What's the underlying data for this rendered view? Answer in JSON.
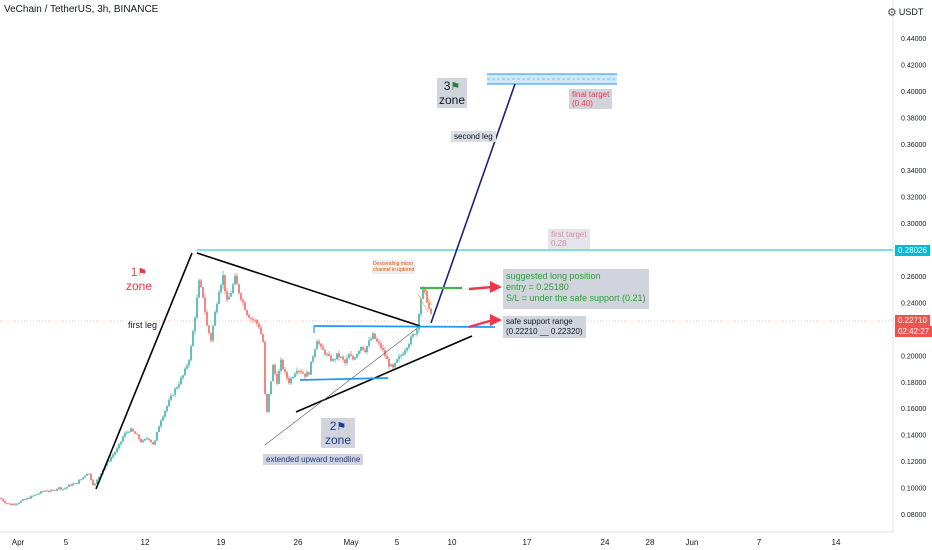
{
  "header": {
    "symbol_title": "VeChain / TetherUS, 3h, BINANCE",
    "currency_label": "USDT"
  },
  "colors": {
    "bull": "#26a69a",
    "bear": "#ef5350",
    "blue_line": "#2196f3",
    "navy_line": "#1a237e",
    "first_target_line": "#00bcd4",
    "green_entry": "#4caf50",
    "red_arrow": "#f23645",
    "price_tag_red": "#ef5350"
  },
  "price_tags": {
    "first_target_value": "0.28026",
    "current_price": "0.22710",
    "countdown": "02:42:27"
  },
  "annotations": {
    "first_leg": "first leg",
    "second_leg": "second leg",
    "zone1_num": "1",
    "zone2_num": "2",
    "zone3_num": "3",
    "zone_word": "zone",
    "extended_trendline": "extended upward trendline",
    "final_target_line1": "final target",
    "final_target_line2": "(0.40)",
    "first_target_line1": "first target",
    "first_target_line2": "0.28",
    "suggested_line1": "suggested long position",
    "suggested_line2": "entry = 0.25180",
    "suggested_line3": "S/L = under the safe support (0.21)",
    "safe_support_line1": "safe support range",
    "safe_support_line2": "(0.22210 __ 0.22320)",
    "micro_channel_line1": "Descending micro",
    "micro_channel_line2": "channel in uptrend"
  },
  "chart_data": {
    "type": "candlestick",
    "x_ticks": [
      "Apr",
      "5",
      "12",
      "19",
      "26",
      "May",
      "5",
      "10",
      "17",
      "24",
      "28",
      "Jun",
      "7",
      "14"
    ],
    "y_ticks": [
      "0.08000",
      "0.10000",
      "0.12000",
      "0.14000",
      "0.16000",
      "0.18000",
      "0.20000",
      "0.22000",
      "0.24000",
      "0.26000",
      "0.28000",
      "0.30000",
      "0.32000",
      "0.34000",
      "0.36000",
      "0.38000",
      "0.40000",
      "0.42000",
      "0.44000"
    ],
    "ylim": [
      0.074,
      0.455
    ],
    "price_path": [
      [
        0,
        0.092
      ],
      [
        5,
        0.089
      ],
      [
        10,
        0.087
      ],
      [
        16,
        0.088
      ],
      [
        22,
        0.09
      ],
      [
        28,
        0.092
      ],
      [
        34,
        0.094
      ],
      [
        40,
        0.096
      ],
      [
        46,
        0.098
      ],
      [
        52,
        0.097
      ],
      [
        58,
        0.1
      ],
      [
        64,
        0.099
      ],
      [
        70,
        0.102
      ],
      [
        76,
        0.103
      ],
      [
        82,
        0.107
      ],
      [
        88,
        0.112
      ],
      [
        94,
        0.101
      ],
      [
        100,
        0.11
      ],
      [
        106,
        0.118
      ],
      [
        112,
        0.124
      ],
      [
        118,
        0.13
      ],
      [
        124,
        0.14
      ],
      [
        130,
        0.144
      ],
      [
        136,
        0.14
      ],
      [
        142,
        0.134
      ],
      [
        148,
        0.138
      ],
      [
        154,
        0.132
      ],
      [
        160,
        0.15
      ],
      [
        166,
        0.16
      ],
      [
        172,
        0.17
      ],
      [
        178,
        0.178
      ],
      [
        184,
        0.186
      ],
      [
        190,
        0.2
      ],
      [
        195,
        0.23
      ],
      [
        199,
        0.255
      ],
      [
        203,
        0.245
      ],
      [
        207,
        0.222
      ],
      [
        211,
        0.212
      ],
      [
        215,
        0.232
      ],
      [
        219,
        0.25
      ],
      [
        223,
        0.26
      ],
      [
        227,
        0.24
      ],
      [
        231,
        0.248
      ],
      [
        235,
        0.258
      ],
      [
        239,
        0.248
      ],
      [
        243,
        0.24
      ],
      [
        247,
        0.232
      ],
      [
        251,
        0.228
      ],
      [
        255,
        0.226
      ],
      [
        259,
        0.222
      ],
      [
        263,
        0.21
      ],
      [
        266,
        0.15
      ],
      [
        269,
        0.17
      ],
      [
        273,
        0.192
      ],
      [
        277,
        0.18
      ],
      [
        281,
        0.195
      ],
      [
        285,
        0.186
      ],
      [
        289,
        0.18
      ],
      [
        293,
        0.185
      ],
      [
        297,
        0.19
      ],
      [
        301,
        0.188
      ],
      [
        305,
        0.185
      ],
      [
        309,
        0.187
      ],
      [
        313,
        0.2
      ],
      [
        317,
        0.212
      ],
      [
        321,
        0.205
      ],
      [
        325,
        0.202
      ],
      [
        329,
        0.198
      ],
      [
        333,
        0.196
      ],
      [
        337,
        0.2
      ],
      [
        341,
        0.198
      ],
      [
        345,
        0.194
      ],
      [
        349,
        0.2
      ],
      [
        353,
        0.197
      ],
      [
        357,
        0.202
      ],
      [
        361,
        0.207
      ],
      [
        365,
        0.204
      ],
      [
        369,
        0.21
      ],
      [
        373,
        0.215
      ],
      [
        377,
        0.21
      ],
      [
        381,
        0.206
      ],
      [
        385,
        0.2
      ],
      [
        389,
        0.193
      ],
      [
        393,
        0.19
      ],
      [
        397,
        0.196
      ],
      [
        401,
        0.2
      ],
      [
        405,
        0.205
      ],
      [
        409,
        0.21
      ],
      [
        413,
        0.215
      ],
      [
        417,
        0.22
      ],
      [
        420,
        0.24
      ],
      [
        423,
        0.25
      ],
      [
        426,
        0.245
      ],
      [
        429,
        0.235
      ],
      [
        432,
        0.227
      ]
    ]
  }
}
